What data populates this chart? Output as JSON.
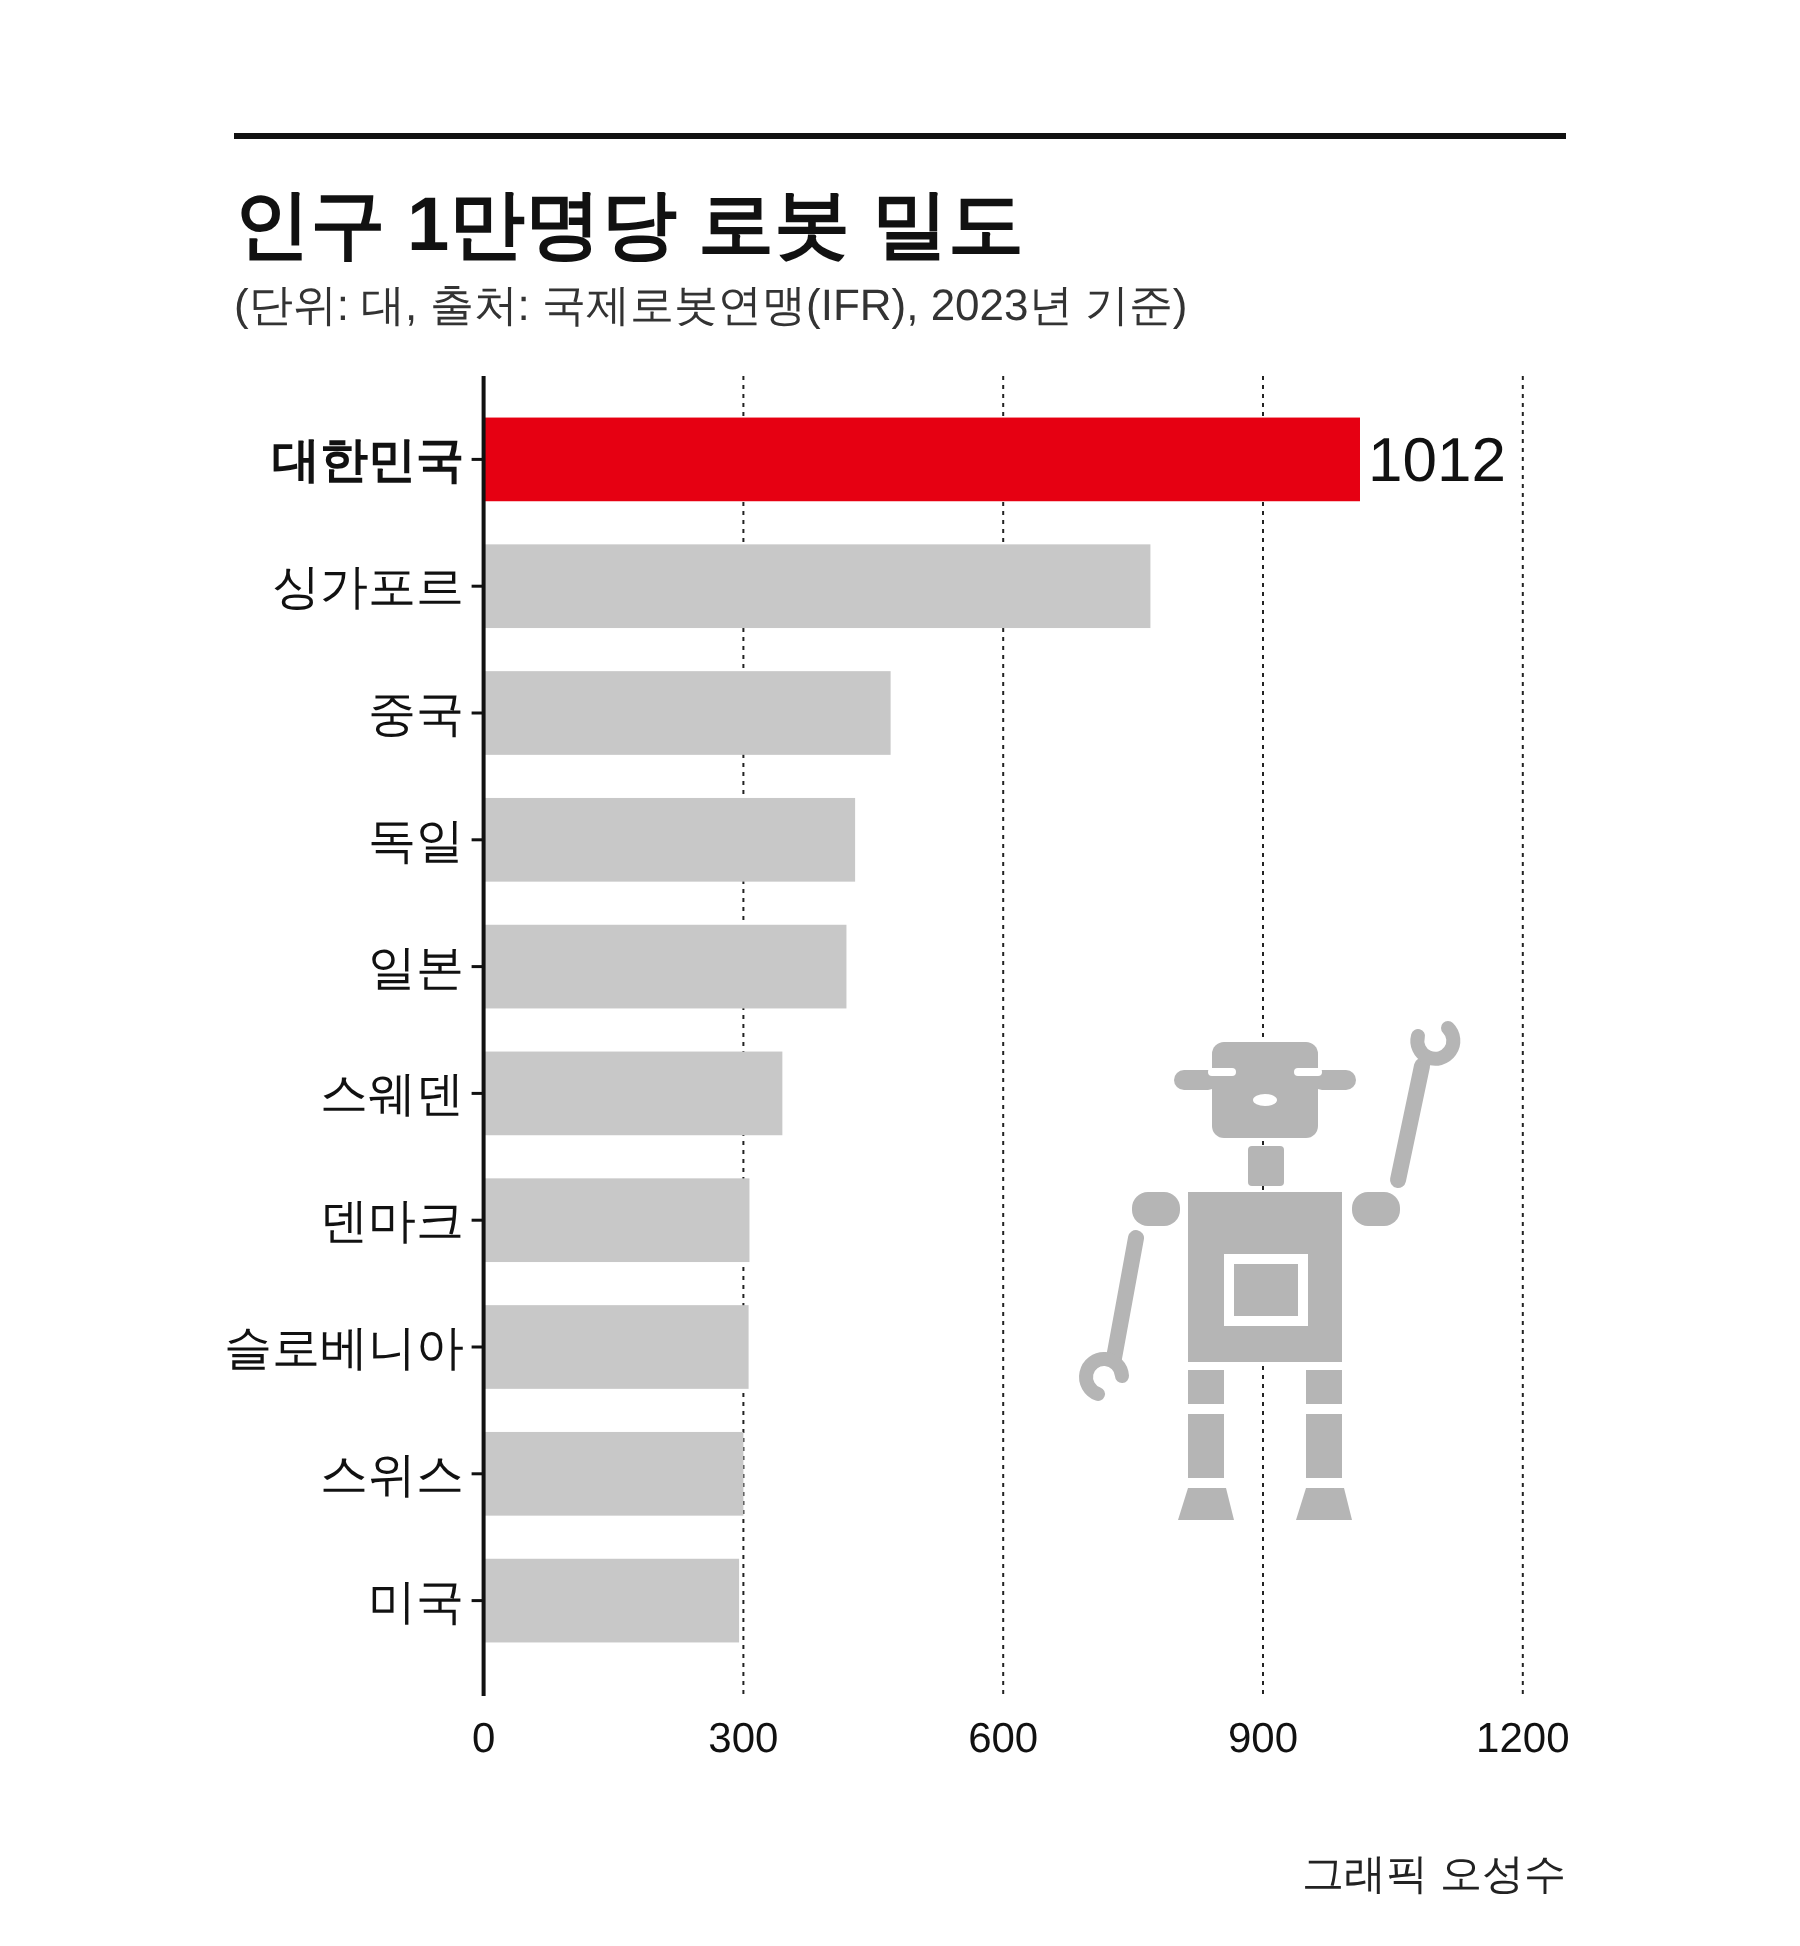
{
  "chart_data": {
    "type": "bar",
    "orientation": "horizontal",
    "title": "인구 1만명당 로봇 밀도",
    "subtitle": "(단위: 대, 출처: 국제로봇연맹(IFR), 2023년 기준)",
    "categories": [
      "대한민국",
      "싱가포르",
      "중국",
      "독일",
      "일본",
      "스웨덴",
      "덴마크",
      "슬로베니아",
      "스위스",
      "미국"
    ],
    "values": [
      1012,
      770,
      470,
      429,
      419,
      345,
      307,
      306,
      300,
      295
    ],
    "colors": [
      "#e60012",
      "#c8c8c8",
      "#c8c8c8",
      "#c8c8c8",
      "#c8c8c8",
      "#c8c8c8",
      "#c8c8c8",
      "#c8c8c8",
      "#c8c8c8",
      "#c8c8c8"
    ],
    "value_labels": [
      "1012",
      null,
      null,
      null,
      null,
      null,
      null,
      null,
      null,
      null
    ],
    "xlim": [
      0,
      1200
    ],
    "xticks": [
      0,
      300,
      600,
      900,
      1200
    ],
    "grid": "x",
    "annotations": [
      "그래픽 오성수"
    ]
  }
}
